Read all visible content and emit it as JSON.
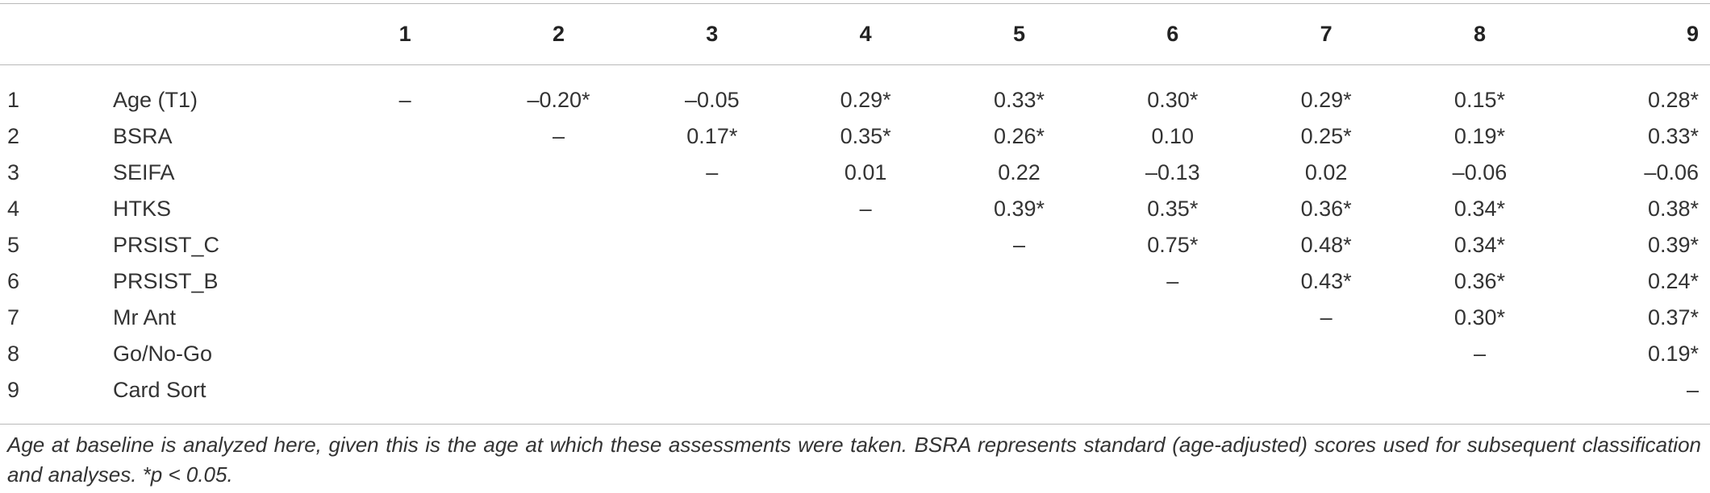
{
  "table": {
    "col_headers": [
      "",
      "",
      "1",
      "2",
      "3",
      "4",
      "5",
      "6",
      "7",
      "8",
      "9"
    ],
    "rows": [
      {
        "num": "1",
        "name": "Age (T1)",
        "cells": [
          "–",
          "–0.20*",
          "–0.05",
          "0.29*",
          "0.33*",
          "0.30*",
          "0.29*",
          "0.15*",
          "0.28*"
        ]
      },
      {
        "num": "2",
        "name": "BSRA",
        "cells": [
          "",
          "–",
          "0.17*",
          "0.35*",
          "0.26*",
          "0.10",
          "0.25*",
          "0.19*",
          "0.33*"
        ]
      },
      {
        "num": "3",
        "name": "SEIFA",
        "cells": [
          "",
          "",
          "–",
          "0.01",
          "0.22",
          "–0.13",
          "0.02",
          "–0.06",
          "–0.06"
        ]
      },
      {
        "num": "4",
        "name": "HTKS",
        "cells": [
          "",
          "",
          "",
          "–",
          "0.39*",
          "0.35*",
          "0.36*",
          "0.34*",
          "0.38*"
        ]
      },
      {
        "num": "5",
        "name": "PRSIST_C",
        "cells": [
          "",
          "",
          "",
          "",
          "–",
          "0.75*",
          "0.48*",
          "0.34*",
          "0.39*"
        ]
      },
      {
        "num": "6",
        "name": "PRSIST_B",
        "cells": [
          "",
          "",
          "",
          "",
          "",
          "–",
          "0.43*",
          "0.36*",
          "0.24*"
        ]
      },
      {
        "num": "7",
        "name": "Mr Ant",
        "cells": [
          "",
          "",
          "",
          "",
          "",
          "",
          "–",
          "0.30*",
          "0.37*"
        ]
      },
      {
        "num": "8",
        "name": "Go/No-Go",
        "cells": [
          "",
          "",
          "",
          "",
          "",
          "",
          "",
          "–",
          "0.19*"
        ]
      },
      {
        "num": "9",
        "name": "Card Sort",
        "cells": [
          "",
          "",
          "",
          "",
          "",
          "",
          "",
          "",
          "–"
        ]
      }
    ]
  },
  "footnote": "Age at baseline is analyzed here, given this is the age at which these assessments were taken. BSRA represents standard (age-adjusted) scores used for subsequent classification and analyses. *p < 0.05."
}
